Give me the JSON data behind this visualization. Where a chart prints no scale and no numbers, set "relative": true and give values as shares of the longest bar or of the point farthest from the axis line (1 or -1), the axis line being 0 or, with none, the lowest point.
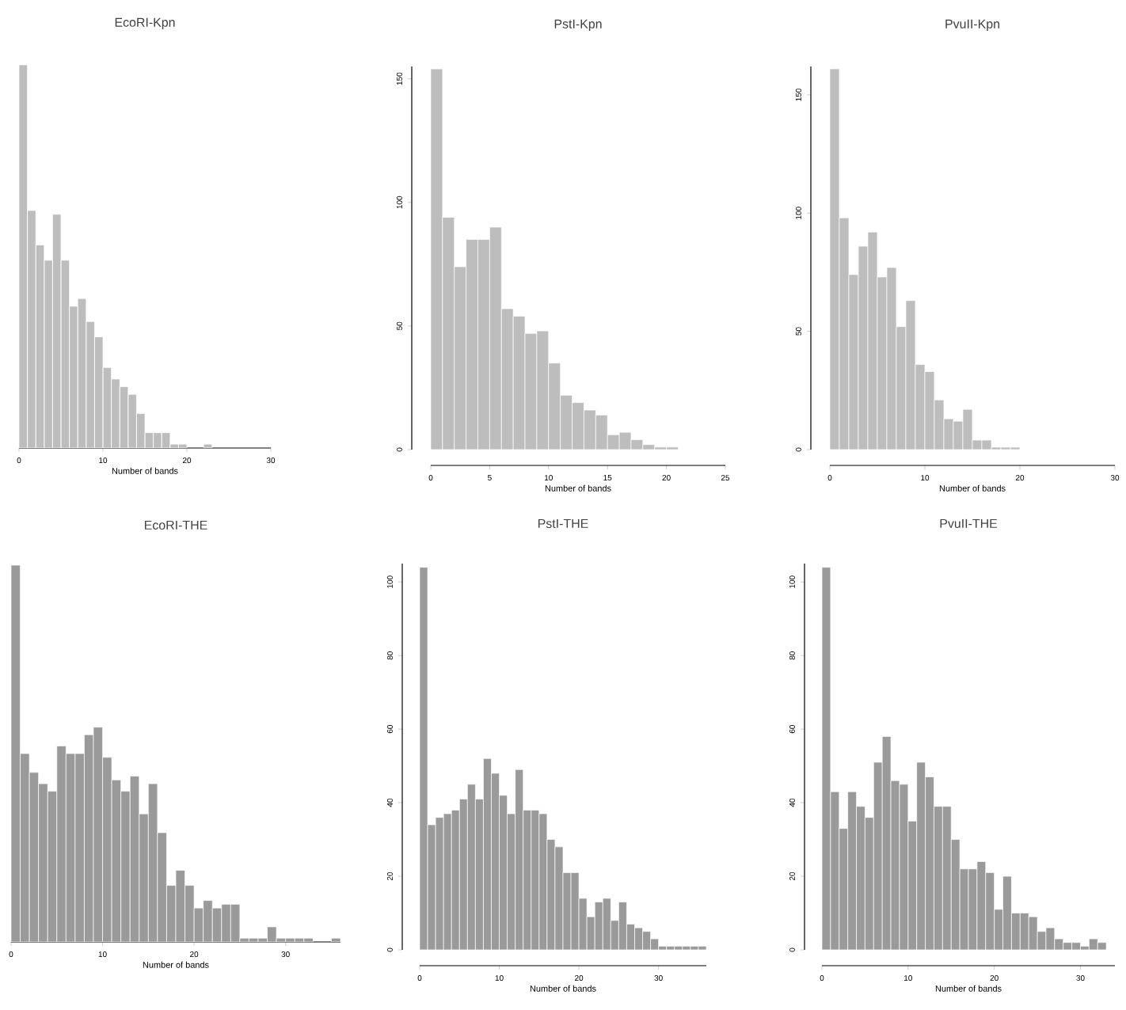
{
  "chart_data": [
    {
      "type": "bar",
      "title": "EcoRI-Kpn",
      "xlabel": "Number of bands",
      "relative": true,
      "color": "#bdbdbd",
      "x": [
        0.5,
        1.5,
        2.5,
        3.5,
        4.5,
        5.5,
        6.5,
        7.5,
        8.5,
        9.5,
        10.5,
        11.5,
        12.5,
        13.5,
        14.5,
        15.5,
        16.5,
        17.5,
        18.5,
        19.5,
        20.5,
        21.5,
        22.5
      ],
      "values": [
        1,
        0.62,
        0.53,
        0.49,
        0.61,
        0.49,
        0.37,
        0.39,
        0.33,
        0.29,
        0.21,
        0.18,
        0.16,
        0.14,
        0.09,
        0.04,
        0.04,
        0.04,
        0.01,
        0.01,
        null,
        null,
        0.01
      ],
      "xlim": [
        0,
        30
      ],
      "xticks": [
        0,
        10,
        20,
        30
      ]
    },
    {
      "type": "histogram",
      "title": "PstI-Kpn",
      "xlabel": "Number of bands",
      "color": "#bdbdbd",
      "bins": [
        0,
        1,
        2,
        3,
        4,
        5,
        6,
        7,
        8,
        9,
        10,
        11,
        12,
        13,
        14,
        15,
        16,
        17,
        18,
        19,
        20,
        21
      ],
      "values": [
        154,
        94,
        74,
        85,
        85,
        90,
        57,
        54,
        47,
        48,
        35,
        22,
        19,
        16,
        14,
        6,
        7,
        4,
        2,
        1,
        1
      ],
      "xlim": [
        0,
        25
      ],
      "xticks": [
        0,
        5,
        10,
        15,
        20,
        25
      ],
      "ylim": [
        0,
        155
      ],
      "yticks": [
        0,
        50,
        100,
        150
      ]
    },
    {
      "type": "histogram",
      "title": "PvuII-Kpn",
      "xlabel": "Number of bands",
      "color": "#bdbdbd",
      "bins": [
        0,
        1,
        2,
        3,
        4,
        5,
        6,
        7,
        8,
        9,
        10,
        11,
        12,
        13,
        14,
        15,
        16,
        17,
        18,
        19,
        20
      ],
      "values": [
        161,
        98,
        74,
        86,
        92,
        73,
        77,
        52,
        63,
        36,
        33,
        21,
        13,
        12,
        17,
        4,
        4,
        1,
        1,
        1
      ],
      "xlim": [
        0,
        30
      ],
      "xticks": [
        0,
        10,
        20,
        30
      ],
      "ylim": [
        0,
        162
      ],
      "yticks": [
        0,
        50,
        100,
        150
      ]
    },
    {
      "type": "bar",
      "title": "EcoRI-THE",
      "xlabel": "Number of bands",
      "relative": true,
      "color": "#9a9a9a",
      "x": [
        0.5,
        1.5,
        2.5,
        3.5,
        4.5,
        5.5,
        6.5,
        7.5,
        8.5,
        9.5,
        10.5,
        11.5,
        12.5,
        13.5,
        14.5,
        15.5,
        16.5,
        17.5,
        18.5,
        19.5,
        20.5,
        21.5,
        22.5,
        23.5,
        24.5,
        25.5,
        26.5,
        27.5,
        28.5,
        29.5,
        30.5,
        31.5,
        32.5,
        33.5,
        34.5,
        35.5
      ],
      "values": [
        1,
        0.5,
        0.45,
        0.42,
        0.4,
        0.52,
        0.5,
        0.5,
        0.55,
        0.57,
        0.49,
        0.43,
        0.4,
        0.44,
        0.34,
        0.42,
        0.29,
        0.15,
        0.19,
        0.15,
        0.09,
        0.11,
        0.09,
        0.1,
        0.1,
        0.01,
        0.01,
        0.01,
        0.04,
        0.01,
        0.01,
        0.01,
        0.01,
        null,
        null,
        0.01
      ],
      "xlim": [
        0,
        36
      ],
      "xticks": [
        0,
        10,
        20,
        30
      ]
    },
    {
      "type": "histogram",
      "title": "PstI-THE",
      "xlabel": "Number of bands",
      "color": "#9a9a9a",
      "bins": [
        0,
        1,
        2,
        3,
        4,
        5,
        6,
        7,
        8,
        9,
        10,
        11,
        12,
        13,
        14,
        15,
        16,
        17,
        18,
        19,
        20,
        21,
        22,
        23,
        24,
        25,
        26,
        27,
        28,
        29,
        30,
        31,
        32,
        33,
        34,
        35,
        36
      ],
      "values": [
        104,
        34,
        36,
        37,
        38,
        41,
        45,
        41,
        52,
        48,
        42,
        37,
        49,
        38,
        38,
        37,
        30,
        28,
        21,
        21,
        14,
        9,
        13,
        14,
        8,
        13,
        7,
        6,
        5,
        3,
        1,
        1,
        1,
        1,
        1,
        1
      ],
      "xlim": [
        0,
        36
      ],
      "xticks": [
        0,
        10,
        20,
        30
      ],
      "ylim": [
        0,
        105
      ],
      "yticks": [
        0,
        20,
        40,
        60,
        80,
        100
      ]
    },
    {
      "type": "histogram",
      "title": "PvuII-THE",
      "xlabel": "Number of bands",
      "color": "#9a9a9a",
      "bins": [
        0,
        1,
        2,
        3,
        4,
        5,
        6,
        7,
        8,
        9,
        10,
        11,
        12,
        13,
        14,
        15,
        16,
        17,
        18,
        19,
        20,
        21,
        22,
        23,
        24,
        25,
        26,
        27,
        28,
        29,
        30,
        31,
        32,
        33
      ],
      "values": [
        104,
        43,
        33,
        43,
        39,
        36,
        51,
        58,
        46,
        45,
        35,
        51,
        47,
        39,
        39,
        30,
        22,
        22,
        24,
        21,
        11,
        20,
        10,
        10,
        9,
        5,
        6,
        3,
        2,
        2,
        1,
        3,
        2
      ],
      "xlim": [
        0,
        34
      ],
      "xticks": [
        0,
        10,
        20,
        30
      ],
      "ylim": [
        0,
        105
      ],
      "yticks": [
        0,
        20,
        40,
        60,
        80,
        100
      ]
    }
  ]
}
